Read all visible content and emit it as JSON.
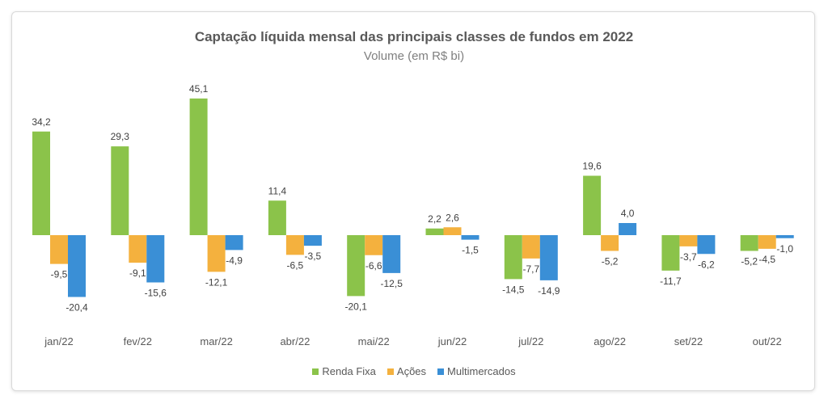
{
  "chart_data": {
    "type": "bar",
    "title": "Captação líquida mensal das principais classes de fundos em 2022",
    "subtitle": "Volume (em R$ bi)",
    "categories": [
      "jan/22",
      "fev/22",
      "mar/22",
      "abr/22",
      "mai/22",
      "jun/22",
      "jul/22",
      "ago/22",
      "set/22",
      "out/22"
    ],
    "series": [
      {
        "name": "Renda Fixa",
        "color": "#8bc34a",
        "values": [
          34.2,
          29.3,
          45.1,
          11.4,
          -20.1,
          2.2,
          -14.5,
          19.6,
          -11.7,
          -5.2
        ],
        "labels": [
          "34,2",
          "29,3",
          "45,1",
          "11,4",
          "-20,1",
          "2,2",
          "-14,5",
          "19,6",
          "-11,7",
          "-5,2"
        ]
      },
      {
        "name": "Ações",
        "color": "#f4b13e",
        "values": [
          -9.5,
          -9.1,
          -12.1,
          -6.5,
          -6.6,
          2.6,
          -7.7,
          -5.2,
          -3.7,
          -4.5
        ],
        "labels": [
          "-9,5",
          "-9,1",
          "-12,1",
          "-6,5",
          "-6,6",
          "2,6",
          "-7,7",
          "-5,2",
          "-3,7",
          "-4,5"
        ]
      },
      {
        "name": "Multimercados",
        "color": "#3a8fd6",
        "values": [
          -20.4,
          -15.6,
          -4.9,
          -3.5,
          -12.5,
          -1.5,
          -14.9,
          4.0,
          -6.2,
          -1.0
        ],
        "labels": [
          "-20,4",
          "-15,6",
          "-4,9",
          "-3,5",
          "-12,5",
          "-1,5",
          "-14,9",
          "4,0",
          "-6,2",
          "-1,0"
        ]
      }
    ],
    "legend_position": "bottom",
    "grid": false
  }
}
